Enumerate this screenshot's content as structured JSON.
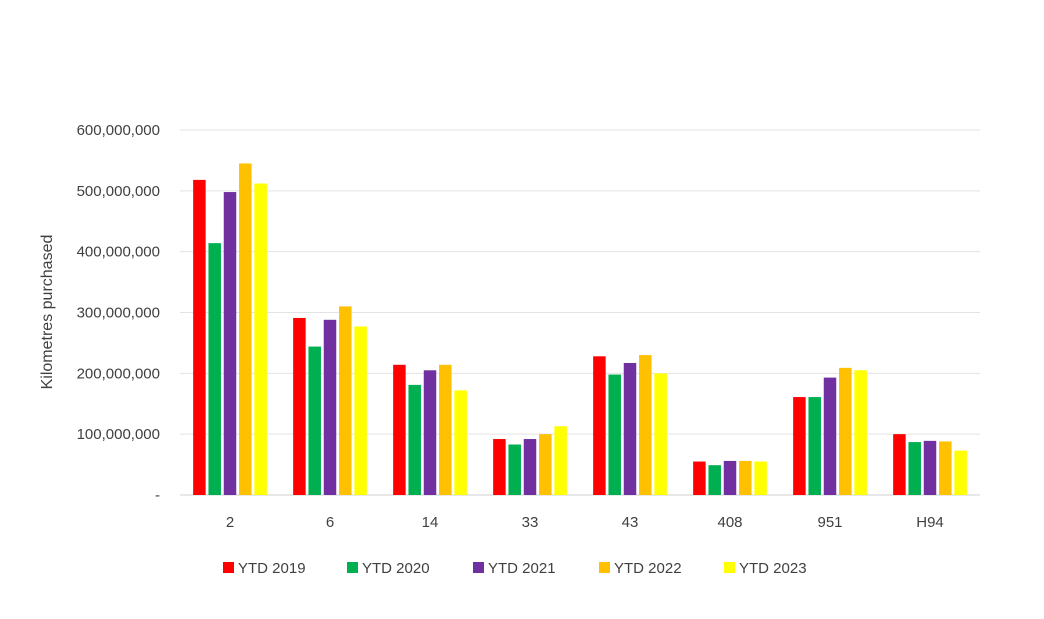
{
  "chart_data": {
    "type": "bar",
    "title": "",
    "xlabel": "",
    "ylabel": "Kilometres purchased",
    "categories": [
      "2",
      "6",
      "14",
      "33",
      "43",
      "408",
      "951",
      "H94"
    ],
    "ylim": [
      0,
      600000000
    ],
    "yticks": [
      {
        "value": 0,
        "label": "-"
      },
      {
        "value": 100000000,
        "label": "100,000,000"
      },
      {
        "value": 200000000,
        "label": "200,000,000"
      },
      {
        "value": 300000000,
        "label": "300,000,000"
      },
      {
        "value": 400000000,
        "label": "400,000,000"
      },
      {
        "value": 500000000,
        "label": "500,000,000"
      },
      {
        "value": 600000000,
        "label": "600,000,000"
      }
    ],
    "grid": true,
    "legend_position": "bottom",
    "series": [
      {
        "name": "YTD 2019",
        "color": "#ff0000",
        "values": [
          518000000,
          291000000,
          214000000,
          92000000,
          228000000,
          55000000,
          161000000,
          100000000
        ]
      },
      {
        "name": "YTD 2020",
        "color": "#00b050",
        "values": [
          414000000,
          244000000,
          181000000,
          83000000,
          198000000,
          49000000,
          161000000,
          87000000
        ]
      },
      {
        "name": "YTD 2021",
        "color": "#7030a0",
        "values": [
          498000000,
          288000000,
          205000000,
          92000000,
          217000000,
          56000000,
          193000000,
          89000000
        ]
      },
      {
        "name": "YTD 2022",
        "color": "#ffc000",
        "values": [
          545000000,
          310000000,
          214000000,
          100000000,
          230000000,
          56000000,
          209000000,
          88000000
        ]
      },
      {
        "name": "YTD 2023",
        "color": "#ffff00",
        "values": [
          512000000,
          277000000,
          172000000,
          113000000,
          200000000,
          55000000,
          205000000,
          73000000
        ]
      }
    ]
  }
}
